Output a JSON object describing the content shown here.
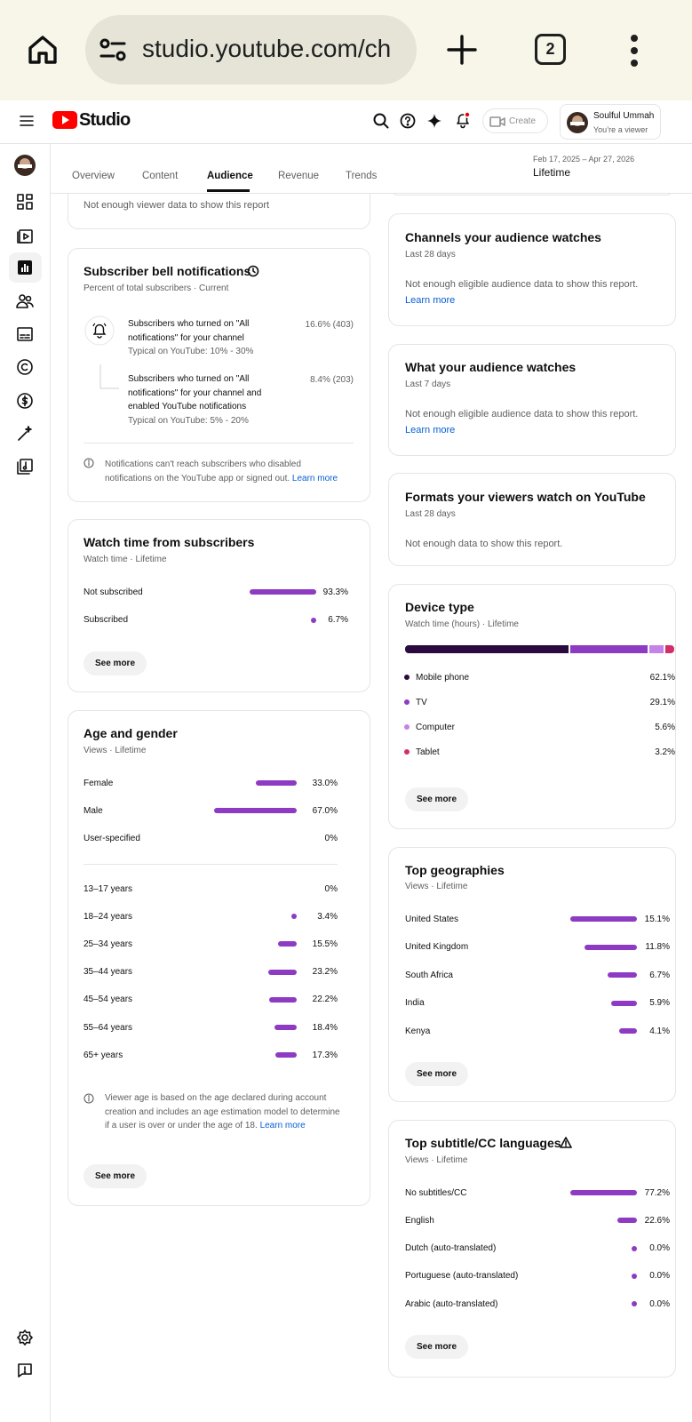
{
  "browser": {
    "url": "studio.youtube.com/ch",
    "tab_count": "2"
  },
  "header": {
    "brand": "Studio",
    "create": "Create",
    "account_name": "Soulful Ummah",
    "account_role": "You’re a viewer"
  },
  "tabs": [
    "Overview",
    "Content",
    "Audience",
    "Revenue",
    "Trends"
  ],
  "date_range": {
    "dates": "Feb 17, 2025 – Apr 27, 2026",
    "period": "Lifetime"
  },
  "cards": {
    "viewer_data": {
      "message": "Not enough viewer data to show this report"
    },
    "bell": {
      "title": "Subscriber bell notifications",
      "subtitle": "Percent of total subscribers · Current",
      "items": [
        {
          "text": "Subscribers who turned on \"All notifications\" for your channel",
          "typical": "Typical on YouTube: 10% - 30%",
          "value": "16.6% (403)"
        },
        {
          "text": "Subscribers who turned on \"All notifications\" for your channel and enabled YouTube notifications",
          "typical": "Typical on YouTube: 5% - 20%",
          "value": "8.4% (203)"
        }
      ],
      "note": "Notifications can't reach subscribers who disabled notifications on the YouTube app or signed out.",
      "link": "Learn more"
    },
    "watch_time": {
      "title": "Watch time from subscribers",
      "subtitle": "Watch time · Lifetime",
      "rows": [
        {
          "label": "Not subscribed",
          "value": 93.3,
          "value_label": "93.3%"
        },
        {
          "label": "Subscribed",
          "value": 6.7,
          "value_label": "6.7%"
        }
      ],
      "button": "See more"
    },
    "age_gender": {
      "title": "Age and gender",
      "subtitle": "Views · Lifetime",
      "gender_rows": [
        {
          "label": "Female",
          "value": 33.0,
          "value_label": "33.0%"
        },
        {
          "label": "Male",
          "value": 67.0,
          "value_label": "67.0%"
        },
        {
          "label": "User-specified",
          "value": 0,
          "value_label": "0%"
        }
      ],
      "age_rows": [
        {
          "label": "13–17 years",
          "value": 0,
          "value_label": "0%"
        },
        {
          "label": "18–24 years",
          "value": 3.4,
          "value_label": "3.4%"
        },
        {
          "label": "25–34 years",
          "value": 15.5,
          "value_label": "15.5%"
        },
        {
          "label": "35–44 years",
          "value": 23.2,
          "value_label": "23.2%"
        },
        {
          "label": "45–54 years",
          "value": 22.2,
          "value_label": "22.2%"
        },
        {
          "label": "55–64 years",
          "value": 18.4,
          "value_label": "18.4%"
        },
        {
          "label": "65+ years",
          "value": 17.3,
          "value_label": "17.3%"
        }
      ],
      "note": "Viewer age is based on the age declared during account creation and includes an age estimation model to determine if a user is over or under the age of 18.",
      "link": "Learn more",
      "button": "See more"
    },
    "channels": {
      "title": "Channels your audience watches",
      "subtitle": "Last 28 days",
      "message": "Not enough eligible audience data to show this report.",
      "link": "Learn more"
    },
    "what_watches": {
      "title": "What your audience watches",
      "subtitle": "Last 7 days",
      "message": "Not enough eligible audience data to show this report.",
      "link": "Learn more"
    },
    "formats": {
      "title": "Formats your viewers watch on YouTube",
      "subtitle": "Last 28 days",
      "message": "Not enough data to show this report."
    },
    "device": {
      "title": "Device type",
      "subtitle": "Watch time (hours) · Lifetime",
      "rows": [
        {
          "label": "Mobile phone",
          "value": 62.1,
          "value_label": "62.1%",
          "color": "#2b0b3f"
        },
        {
          "label": "TV",
          "value": 29.1,
          "value_label": "29.1%",
          "color": "#8e3bc3"
        },
        {
          "label": "Computer",
          "value": 5.6,
          "value_label": "5.6%",
          "color": "#c483e8"
        },
        {
          "label": "Tablet",
          "value": 3.2,
          "value_label": "3.2%",
          "color": "#d22e6a"
        }
      ],
      "button": "See more"
    },
    "geographies": {
      "title": "Top geographies",
      "subtitle": "Views · Lifetime",
      "rows": [
        {
          "label": "United States",
          "value": 15.1,
          "value_label": "15.1%"
        },
        {
          "label": "United Kingdom",
          "value": 11.8,
          "value_label": "11.8%"
        },
        {
          "label": "South Africa",
          "value": 6.7,
          "value_label": "6.7%"
        },
        {
          "label": "India",
          "value": 5.9,
          "value_label": "5.9%"
        },
        {
          "label": "Kenya",
          "value": 4.1,
          "value_label": "4.1%"
        }
      ],
      "button": "See more"
    },
    "subtitles": {
      "title": "Top subtitle/CC languages",
      "subtitle": "Views · Lifetime",
      "rows": [
        {
          "label": "No subtitles/CC",
          "value": 77.2,
          "value_label": "77.2%"
        },
        {
          "label": "English",
          "value": 22.6,
          "value_label": "22.6%"
        },
        {
          "label": "Dutch (auto-translated)",
          "value": 0.0,
          "value_label": "0.0%"
        },
        {
          "label": "Portuguese (auto-translated)",
          "value": 0.0,
          "value_label": "0.0%"
        },
        {
          "label": "Arabic (auto-translated)",
          "value": 0.0,
          "value_label": "0.0%"
        }
      ],
      "button": "See more"
    }
  }
}
